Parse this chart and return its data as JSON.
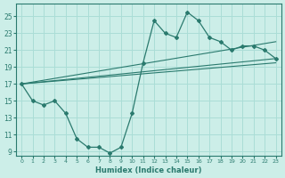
{
  "xlabel": "Humidex (Indice chaleur)",
  "bg_color": "#cceee8",
  "line_color": "#2a7a6e",
  "grid_color": "#aaddd6",
  "xlim": [
    -0.5,
    23.5
  ],
  "ylim": [
    8.5,
    26.5
  ],
  "yticks": [
    9,
    11,
    13,
    15,
    17,
    19,
    21,
    23,
    25
  ],
  "xticks": [
    0,
    1,
    2,
    3,
    4,
    5,
    6,
    7,
    8,
    9,
    10,
    11,
    12,
    13,
    14,
    15,
    16,
    17,
    18,
    19,
    20,
    21,
    22,
    23
  ],
  "main_x": [
    0,
    1,
    2,
    3,
    4,
    5,
    6,
    7,
    8,
    9,
    10,
    11,
    12,
    13,
    14,
    15,
    16,
    17,
    18,
    19,
    20,
    21,
    22,
    23
  ],
  "main_y": [
    17,
    15,
    14.5,
    15,
    13.5,
    10.5,
    9.5,
    9.5,
    8.8,
    9.5,
    13.5,
    19.5,
    24.5,
    23.0,
    22.5,
    25.5,
    24.5,
    22.5,
    22.0,
    21.0,
    21.5,
    21.5,
    21.0,
    20.0
  ],
  "line1_x": [
    0,
    23
  ],
  "line1_y": [
    17,
    20.0
  ],
  "line2_x": [
    0,
    23
  ],
  "line2_y": [
    17,
    22.0
  ],
  "line3_x": [
    0,
    23
  ],
  "line3_y": [
    17,
    19.5
  ]
}
